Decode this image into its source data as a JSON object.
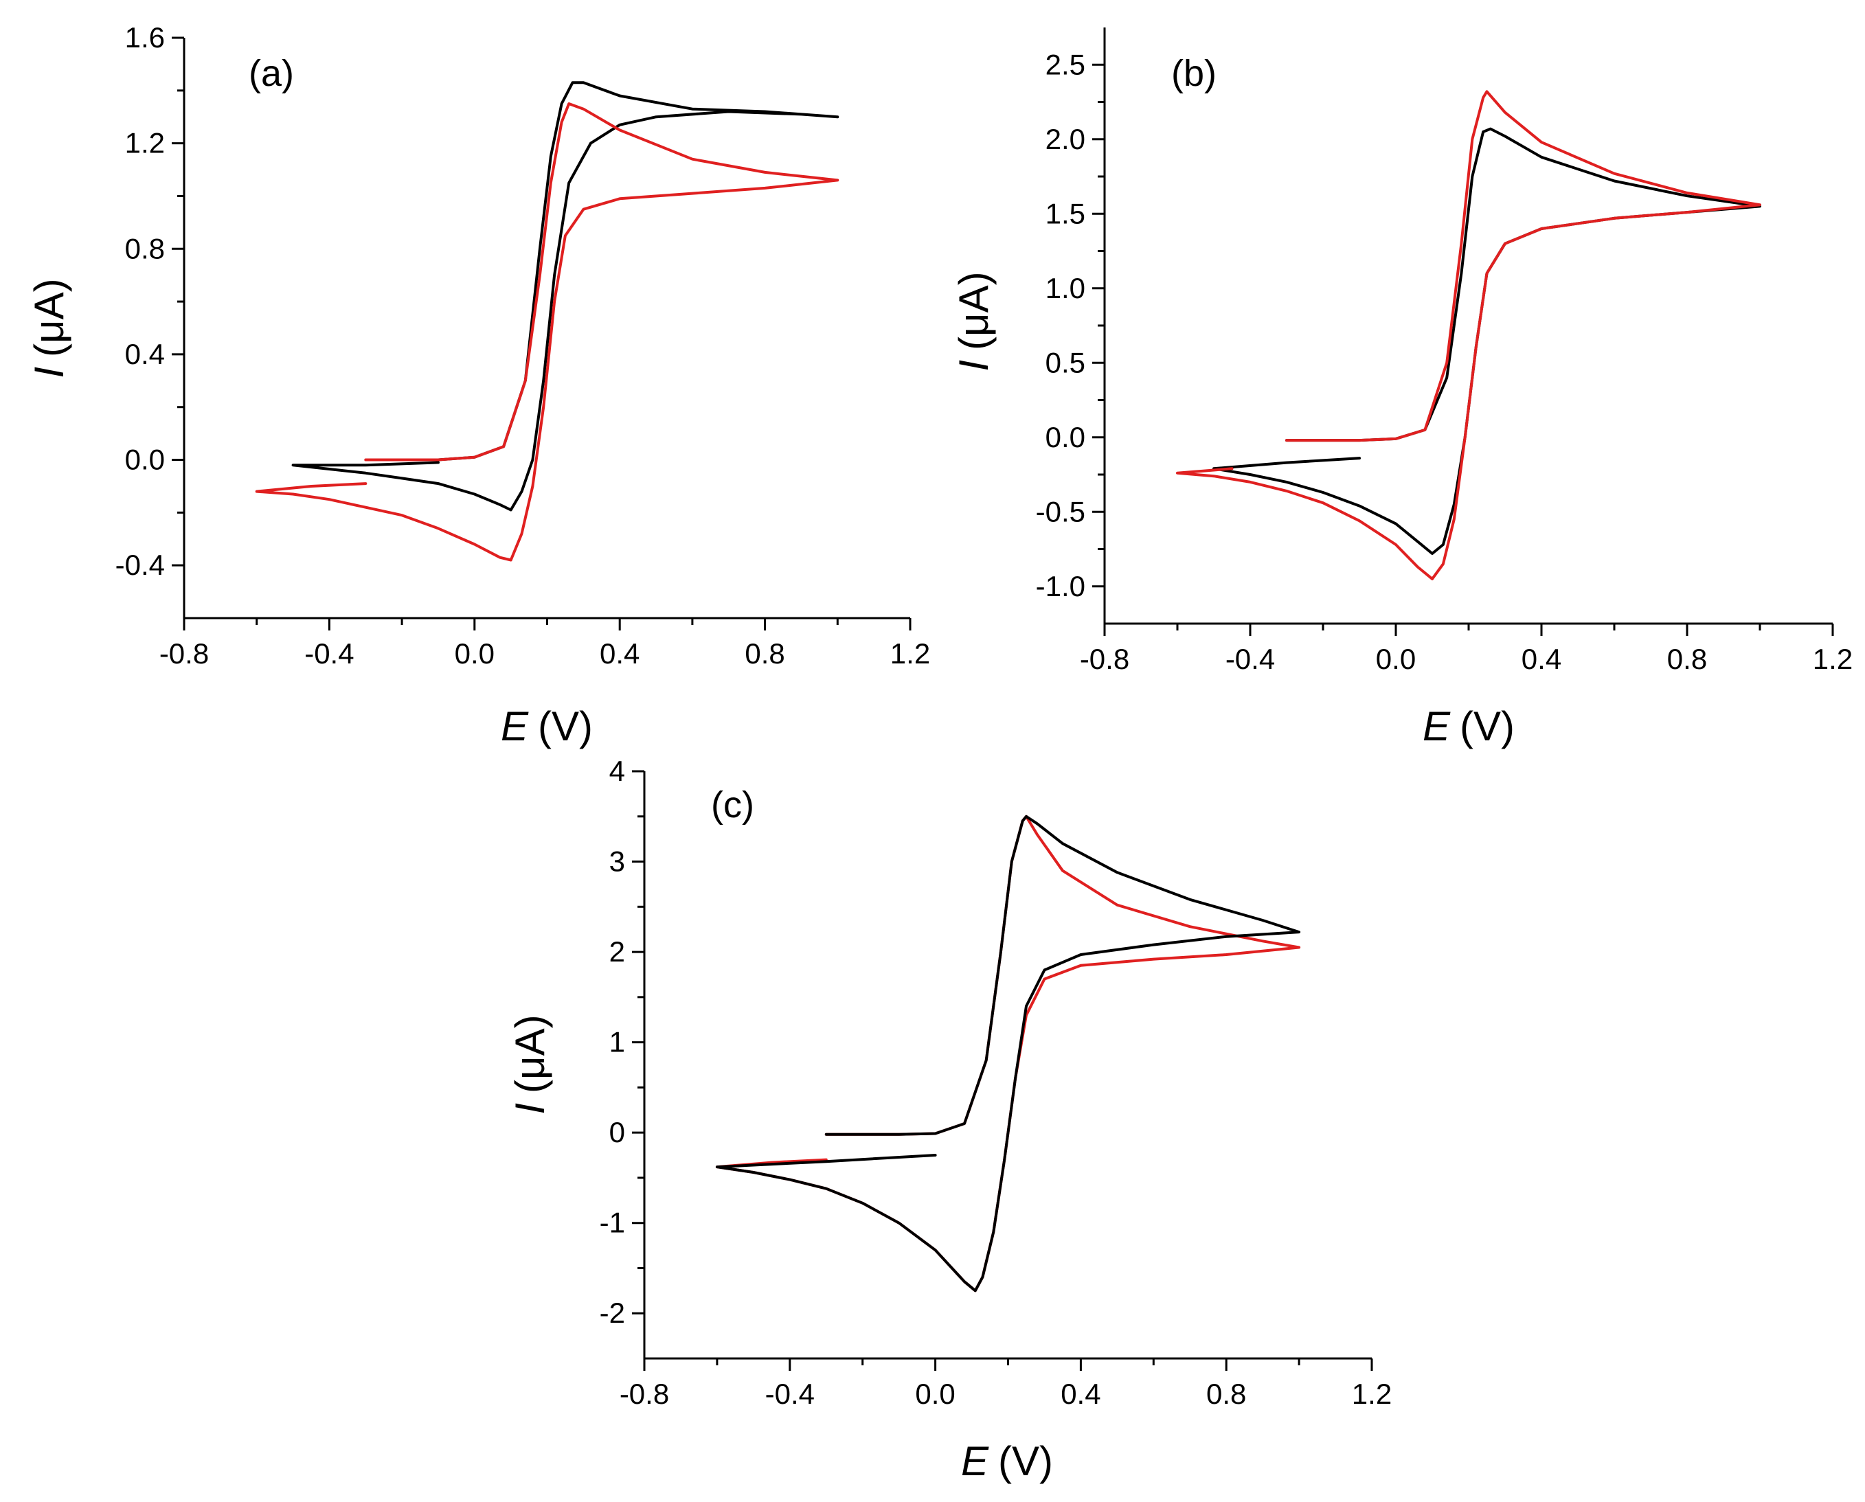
{
  "chart_data": [
    {
      "type": "line",
      "panel_label": "(a)",
      "xlabel_var": "E",
      "xlabel_unit": "(V)",
      "ylabel_var": "I",
      "ylabel_unit": "(μA)",
      "xlim": [
        -0.8,
        1.2
      ],
      "ylim": [
        -0.6,
        1.6
      ],
      "xticks": [
        -0.8,
        -0.4,
        0.0,
        0.4,
        0.8,
        1.2
      ],
      "xtick_labels": [
        "-0.8",
        "-0.4",
        "0.0",
        "0.4",
        "0.8",
        "1.2"
      ],
      "yticks": [
        -0.4,
        0.0,
        0.4,
        0.8,
        1.2,
        1.6
      ],
      "ytick_labels": [
        "-0.4",
        "0.0",
        "0.4",
        "0.8",
        "1.2",
        "1.6"
      ],
      "grid": false,
      "series": [
        {
          "name": "black",
          "color": "#000000",
          "points": [
            [
              -0.1,
              0.0
            ],
            [
              0.0,
              0.01
            ],
            [
              0.08,
              0.05
            ],
            [
              0.14,
              0.3
            ],
            [
              0.18,
              0.8
            ],
            [
              0.21,
              1.15
            ],
            [
              0.24,
              1.35
            ],
            [
              0.27,
              1.43
            ],
            [
              0.3,
              1.43
            ],
            [
              0.4,
              1.38
            ],
            [
              0.6,
              1.33
            ],
            [
              0.8,
              1.32
            ],
            [
              1.0,
              1.3
            ],
            [
              0.9,
              1.31
            ],
            [
              0.7,
              1.32
            ],
            [
              0.5,
              1.3
            ],
            [
              0.4,
              1.27
            ],
            [
              0.32,
              1.2
            ],
            [
              0.26,
              1.05
            ],
            [
              0.22,
              0.7
            ],
            [
              0.19,
              0.3
            ],
            [
              0.16,
              0.0
            ],
            [
              0.13,
              -0.12
            ],
            [
              0.1,
              -0.19
            ],
            [
              0.07,
              -0.17
            ],
            [
              0.0,
              -0.13
            ],
            [
              -0.1,
              -0.09
            ],
            [
              -0.2,
              -0.07
            ],
            [
              -0.3,
              -0.05
            ],
            [
              -0.4,
              -0.035
            ],
            [
              -0.5,
              -0.02
            ],
            [
              -0.3,
              -0.02
            ],
            [
              -0.1,
              -0.01
            ]
          ]
        },
        {
          "name": "red",
          "color": "#e02020",
          "points": [
            [
              -0.3,
              0.0
            ],
            [
              -0.1,
              0.0
            ],
            [
              0.0,
              0.01
            ],
            [
              0.08,
              0.05
            ],
            [
              0.14,
              0.3
            ],
            [
              0.18,
              0.7
            ],
            [
              0.21,
              1.05
            ],
            [
              0.24,
              1.28
            ],
            [
              0.26,
              1.35
            ],
            [
              0.3,
              1.33
            ],
            [
              0.4,
              1.25
            ],
            [
              0.6,
              1.14
            ],
            [
              0.8,
              1.09
            ],
            [
              1.0,
              1.06
            ],
            [
              0.8,
              1.03
            ],
            [
              0.6,
              1.01
            ],
            [
              0.4,
              0.99
            ],
            [
              0.3,
              0.95
            ],
            [
              0.25,
              0.85
            ],
            [
              0.22,
              0.6
            ],
            [
              0.19,
              0.2
            ],
            [
              0.16,
              -0.1
            ],
            [
              0.13,
              -0.28
            ],
            [
              0.1,
              -0.38
            ],
            [
              0.07,
              -0.37
            ],
            [
              0.0,
              -0.32
            ],
            [
              -0.1,
              -0.26
            ],
            [
              -0.2,
              -0.21
            ],
            [
              -0.3,
              -0.18
            ],
            [
              -0.4,
              -0.15
            ],
            [
              -0.5,
              -0.13
            ],
            [
              -0.6,
              -0.12
            ],
            [
              -0.45,
              -0.1
            ],
            [
              -0.3,
              -0.09
            ]
          ]
        }
      ]
    },
    {
      "type": "line",
      "panel_label": "(b)",
      "xlabel_var": "E",
      "xlabel_unit": "(V)",
      "ylabel_var": "I",
      "ylabel_unit": "(μA)",
      "xlim": [
        -0.8,
        1.2
      ],
      "ylim": [
        -1.25,
        2.75
      ],
      "xticks": [
        -0.8,
        -0.4,
        0.0,
        0.4,
        0.8,
        1.2
      ],
      "xtick_labels": [
        "-0.8",
        "-0.4",
        "0.0",
        "0.4",
        "0.8",
        "1.2"
      ],
      "yticks": [
        -1.0,
        -0.5,
        0.0,
        0.5,
        1.0,
        1.5,
        2.0,
        2.5
      ],
      "ytick_labels": [
        "-1.0",
        "-0.5",
        "0.0",
        "0.5",
        "1.0",
        "1.5",
        "2.0",
        "2.5"
      ],
      "grid": false,
      "series": [
        {
          "name": "black",
          "color": "#000000",
          "points": [
            [
              -0.3,
              -0.02
            ],
            [
              -0.1,
              -0.02
            ],
            [
              0.0,
              -0.01
            ],
            [
              0.08,
              0.05
            ],
            [
              0.14,
              0.4
            ],
            [
              0.18,
              1.1
            ],
            [
              0.21,
              1.75
            ],
            [
              0.24,
              2.05
            ],
            [
              0.26,
              2.07
            ],
            [
              0.3,
              2.02
            ],
            [
              0.4,
              1.88
            ],
            [
              0.6,
              1.72
            ],
            [
              0.8,
              1.62
            ],
            [
              1.0,
              1.55
            ],
            [
              0.8,
              1.51
            ],
            [
              0.6,
              1.47
            ],
            [
              0.4,
              1.4
            ],
            [
              0.3,
              1.3
            ],
            [
              0.25,
              1.1
            ],
            [
              0.22,
              0.6
            ],
            [
              0.19,
              0.0
            ],
            [
              0.16,
              -0.45
            ],
            [
              0.13,
              -0.72
            ],
            [
              0.1,
              -0.78
            ],
            [
              0.06,
              -0.7
            ],
            [
              0.0,
              -0.58
            ],
            [
              -0.1,
              -0.46
            ],
            [
              -0.2,
              -0.37
            ],
            [
              -0.3,
              -0.3
            ],
            [
              -0.4,
              -0.25
            ],
            [
              -0.5,
              -0.21
            ],
            [
              -0.3,
              -0.17
            ],
            [
              -0.1,
              -0.14
            ]
          ]
        },
        {
          "name": "red",
          "color": "#e02020",
          "points": [
            [
              -0.3,
              -0.02
            ],
            [
              -0.1,
              -0.02
            ],
            [
              0.0,
              -0.01
            ],
            [
              0.08,
              0.05
            ],
            [
              0.14,
              0.5
            ],
            [
              0.18,
              1.3
            ],
            [
              0.21,
              2.0
            ],
            [
              0.24,
              2.28
            ],
            [
              0.25,
              2.32
            ],
            [
              0.3,
              2.18
            ],
            [
              0.4,
              1.98
            ],
            [
              0.6,
              1.77
            ],
            [
              0.8,
              1.64
            ],
            [
              1.0,
              1.56
            ],
            [
              0.8,
              1.51
            ],
            [
              0.6,
              1.47
            ],
            [
              0.4,
              1.4
            ],
            [
              0.3,
              1.3
            ],
            [
              0.25,
              1.1
            ],
            [
              0.22,
              0.6
            ],
            [
              0.19,
              0.0
            ],
            [
              0.16,
              -0.55
            ],
            [
              0.13,
              -0.85
            ],
            [
              0.1,
              -0.95
            ],
            [
              0.06,
              -0.87
            ],
            [
              0.0,
              -0.72
            ],
            [
              -0.1,
              -0.56
            ],
            [
              -0.2,
              -0.44
            ],
            [
              -0.3,
              -0.36
            ],
            [
              -0.4,
              -0.3
            ],
            [
              -0.5,
              -0.26
            ],
            [
              -0.6,
              -0.24
            ],
            [
              -0.5,
              -0.22
            ],
            [
              -0.45,
              -0.21
            ]
          ]
        }
      ]
    },
    {
      "type": "line",
      "panel_label": "(c)",
      "xlabel_var": "E",
      "xlabel_unit": "(V)",
      "ylabel_var": "I",
      "ylabel_unit": "(μA)",
      "xlim": [
        -0.8,
        1.2
      ],
      "ylim": [
        -2.5,
        4.0
      ],
      "xticks": [
        -0.8,
        -0.4,
        0.0,
        0.4,
        0.8,
        1.2
      ],
      "xtick_labels": [
        "-0.8",
        "-0.4",
        "0.0",
        "0.4",
        "0.8",
        "1.2"
      ],
      "yticks": [
        -2,
        -1,
        0,
        1,
        2,
        3,
        4
      ],
      "ytick_labels": [
        "-2",
        "-1",
        "0",
        "1",
        "2",
        "3",
        "4"
      ],
      "grid": false,
      "series": [
        {
          "name": "red",
          "color": "#e02020",
          "points": [
            [
              -0.3,
              -0.02
            ],
            [
              -0.1,
              -0.02
            ],
            [
              0.0,
              -0.01
            ],
            [
              0.08,
              0.1
            ],
            [
              0.14,
              0.8
            ],
            [
              0.18,
              2.0
            ],
            [
              0.21,
              3.0
            ],
            [
              0.24,
              3.45
            ],
            [
              0.25,
              3.5
            ],
            [
              0.28,
              3.3
            ],
            [
              0.35,
              2.9
            ],
            [
              0.5,
              2.52
            ],
            [
              0.7,
              2.28
            ],
            [
              0.9,
              2.12
            ],
            [
              1.0,
              2.05
            ],
            [
              0.8,
              1.97
            ],
            [
              0.6,
              1.92
            ],
            [
              0.4,
              1.85
            ],
            [
              0.3,
              1.7
            ],
            [
              0.25,
              1.3
            ],
            [
              0.22,
              0.6
            ],
            [
              0.19,
              -0.3
            ],
            [
              0.16,
              -1.1
            ],
            [
              0.13,
              -1.6
            ],
            [
              0.11,
              -1.75
            ],
            [
              0.08,
              -1.65
            ],
            [
              0.0,
              -1.3
            ],
            [
              -0.1,
              -1.0
            ],
            [
              -0.2,
              -0.78
            ],
            [
              -0.3,
              -0.62
            ],
            [
              -0.4,
              -0.52
            ],
            [
              -0.5,
              -0.44
            ],
            [
              -0.6,
              -0.38
            ],
            [
              -0.45,
              -0.33
            ],
            [
              -0.3,
              -0.3
            ]
          ]
        },
        {
          "name": "black",
          "color": "#000000",
          "points": [
            [
              -0.3,
              -0.02
            ],
            [
              -0.1,
              -0.02
            ],
            [
              0.0,
              -0.01
            ],
            [
              0.08,
              0.1
            ],
            [
              0.14,
              0.8
            ],
            [
              0.18,
              2.0
            ],
            [
              0.21,
              3.0
            ],
            [
              0.24,
              3.45
            ],
            [
              0.25,
              3.5
            ],
            [
              0.28,
              3.42
            ],
            [
              0.35,
              3.2
            ],
            [
              0.5,
              2.88
            ],
            [
              0.7,
              2.58
            ],
            [
              0.9,
              2.35
            ],
            [
              1.0,
              2.22
            ],
            [
              0.8,
              2.17
            ],
            [
              0.6,
              2.08
            ],
            [
              0.4,
              1.97
            ],
            [
              0.3,
              1.8
            ],
            [
              0.25,
              1.4
            ],
            [
              0.22,
              0.6
            ],
            [
              0.19,
              -0.3
            ],
            [
              0.16,
              -1.1
            ],
            [
              0.13,
              -1.6
            ],
            [
              0.11,
              -1.75
            ],
            [
              0.08,
              -1.65
            ],
            [
              0.0,
              -1.3
            ],
            [
              -0.1,
              -1.0
            ],
            [
              -0.2,
              -0.78
            ],
            [
              -0.3,
              -0.62
            ],
            [
              -0.4,
              -0.52
            ],
            [
              -0.5,
              -0.44
            ],
            [
              -0.6,
              -0.38
            ],
            [
              -0.3,
              -0.32
            ],
            [
              0.0,
              -0.25
            ]
          ]
        }
      ]
    }
  ]
}
